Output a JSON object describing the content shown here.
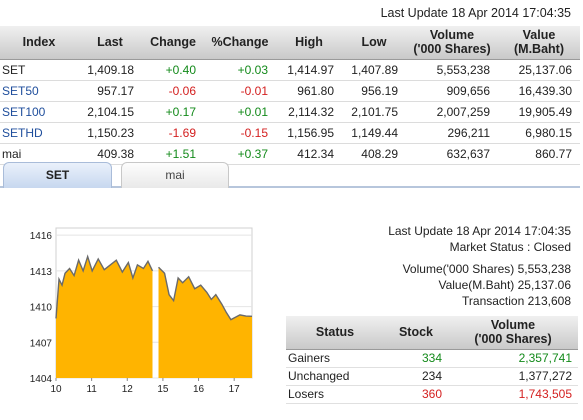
{
  "top": {
    "last_update": "Last Update 18 Apr 2014 17:04:35"
  },
  "index_table": {
    "headers": [
      "Index",
      "Last",
      "Change",
      "%Change",
      "High",
      "Low",
      "Volume\n('000 Shares)",
      "Value\n(M.Baht)"
    ],
    "rows": [
      {
        "name": "SET",
        "last": "1,409.18",
        "change": "+0.40",
        "pct": "+0.03",
        "high": "1,414.97",
        "low": "1,407.89",
        "volume": "5,553,238",
        "value": "25,137.06"
      },
      {
        "name": "SET50",
        "last": "957.17",
        "change": "-0.06",
        "pct": "-0.01",
        "high": "961.80",
        "low": "956.19",
        "volume": "909,656",
        "value": "16,439.30"
      },
      {
        "name": "SET100",
        "last": "2,104.15",
        "change": "+0.17",
        "pct": "+0.01",
        "high": "2,114.32",
        "low": "2,101.75",
        "volume": "2,007,259",
        "value": "19,905.49"
      },
      {
        "name": "SETHD",
        "last": "1,150.23",
        "change": "-1.69",
        "pct": "-0.15",
        "high": "1,156.95",
        "low": "1,149.44",
        "volume": "296,211",
        "value": "6,980.15"
      },
      {
        "name": "mai",
        "last": "409.38",
        "change": "+1.51",
        "pct": "+0.37",
        "high": "412.34",
        "low": "408.29",
        "volume": "632,637",
        "value": "860.77"
      }
    ]
  },
  "tabs": {
    "set": "SET",
    "mai": "mai"
  },
  "right_panel": {
    "last_update": "Last Update 18 Apr 2014 17:04:35",
    "market_status": "Market Status : Closed",
    "volume": "Volume('000 Shares) 5,553,238",
    "value": "Value(M.Baht) 25,137.06",
    "transaction": "Transaction 213,608"
  },
  "status_table": {
    "headers": {
      "status": "Status",
      "stock": "Stock",
      "volume": "Volume\n('000 Shares)"
    },
    "rows": [
      {
        "label": "Gainers",
        "stock": "334",
        "volume": "2,357,741",
        "color": "#138a1a"
      },
      {
        "label": "Unchanged",
        "stock": "234",
        "volume": "1,377,272",
        "color": "#222222"
      },
      {
        "label": "Losers",
        "stock": "360",
        "volume": "1,743,505",
        "color": "#d42020"
      }
    ]
  },
  "colors": {
    "area_fill": "#ffb400",
    "line": "#6a6a6a",
    "gainers": "#138a1a",
    "losers": "#d42020"
  },
  "chart_data": {
    "type": "area",
    "y_ticks": [
      "1416",
      "1413",
      "1410",
      "1407",
      "1404"
    ],
    "x_ticks": [
      "10",
      "11",
      "12",
      "15",
      "16",
      "17"
    ],
    "ylim": [
      1404,
      1416.6
    ],
    "xlim": [
      0,
      6.5
    ],
    "series": [
      {
        "values_points": [
          [
            0.0,
            1409.0
          ],
          [
            0.1,
            1412.3
          ],
          [
            0.2,
            1411.8
          ],
          [
            0.3,
            1412.8
          ],
          [
            0.45,
            1413.2
          ],
          [
            0.6,
            1412.6
          ],
          [
            0.75,
            1413.9
          ],
          [
            0.9,
            1413.0
          ],
          [
            1.05,
            1414.2
          ],
          [
            1.2,
            1413.0
          ],
          [
            1.4,
            1414.0
          ],
          [
            1.6,
            1413.1
          ],
          [
            1.8,
            1413.5
          ],
          [
            2.0,
            1413.9
          ],
          [
            2.2,
            1412.9
          ],
          [
            2.4,
            1413.7
          ],
          [
            2.55,
            1412.4
          ],
          [
            2.7,
            1413.5
          ],
          [
            2.9,
            1413.2
          ],
          [
            3.05,
            1413.8
          ],
          [
            3.2,
            1413.0
          ],
          [
            3.4,
            1413.3
          ],
          [
            3.6,
            1412.8
          ],
          [
            3.75,
            1411.0
          ],
          [
            3.9,
            1410.5
          ],
          [
            4.05,
            1412.4
          ],
          [
            4.2,
            1412.0
          ],
          [
            4.4,
            1412.5
          ],
          [
            4.6,
            1411.5
          ],
          [
            4.8,
            1411.8
          ],
          [
            5.0,
            1411.2
          ],
          [
            5.15,
            1410.6
          ],
          [
            5.3,
            1411.0
          ],
          [
            5.5,
            1410.2
          ],
          [
            5.65,
            1409.5
          ],
          [
            5.8,
            1408.9
          ],
          [
            5.95,
            1409.1
          ],
          [
            6.1,
            1409.3
          ],
          [
            6.3,
            1409.2
          ],
          [
            6.5,
            1409.18
          ]
        ]
      }
    ]
  }
}
